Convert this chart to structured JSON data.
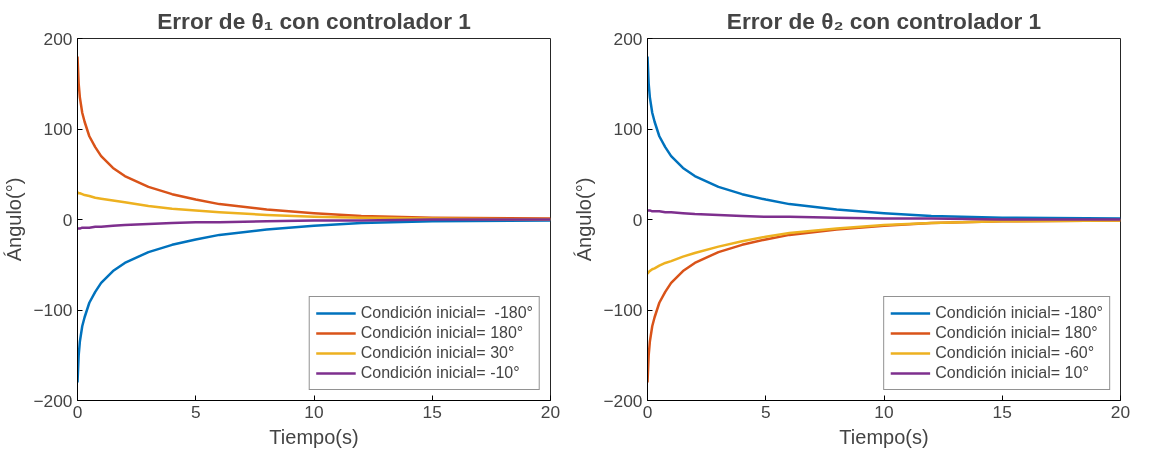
{
  "chart_data": [
    {
      "type": "line",
      "title": "Error de θ₁ con controlador 1",
      "xlabel": "Tiempo(s)",
      "ylabel": "Ángulo(°)",
      "x": [
        0,
        0.05,
        0.1,
        0.2,
        0.3,
        0.5,
        0.75,
        1,
        1.5,
        2,
        3,
        4,
        5,
        6,
        8,
        10,
        12,
        15,
        20
      ],
      "xlim": [
        0,
        20
      ],
      "ylim": [
        -200,
        200
      ],
      "xticks": [
        0,
        5,
        10,
        15,
        20
      ],
      "yticks": [
        -200,
        -100,
        0,
        100,
        200
      ],
      "grid": false,
      "legend": "bottom right",
      "line_style": "solid",
      "marker": "none",
      "series": [
        {
          "name": "Condición inicial=  -180°",
          "color": "#0072bd",
          "values": [
            -180,
            -150,
            -135,
            -118,
            -108,
            -92,
            -80,
            -70,
            -57,
            -48,
            -36,
            -28,
            -22,
            -17,
            -11,
            -7,
            -4,
            -2,
            -1
          ]
        },
        {
          "name": "Condición inicial= 180°",
          "color": "#d95319",
          "values": [
            180,
            150,
            135,
            118,
            108,
            92,
            80,
            70,
            57,
            48,
            36,
            28,
            22,
            17,
            11,
            7,
            4,
            2,
            1
          ]
        },
        {
          "name": "Condición inicial= 30°",
          "color": "#edb120",
          "values": [
            30,
            29,
            29,
            28,
            27,
            26,
            24,
            23,
            21,
            19,
            15,
            12,
            10,
            8,
            5,
            3,
            2,
            1,
            0
          ]
        },
        {
          "name": "Condición inicial= -10°",
          "color": "#7e2f8e",
          "values": [
            -10,
            -10,
            -10,
            -9,
            -9,
            -9,
            -8,
            -8,
            -7,
            -6,
            -5,
            -4,
            -3,
            -3,
            -2,
            -1,
            -1,
            0,
            0
          ]
        }
      ]
    },
    {
      "type": "line",
      "title": "Error de θ₂ con controlador 1",
      "xlabel": "Tiempo(s)",
      "ylabel": "Ángulo(°)",
      "x": [
        0,
        0.05,
        0.1,
        0.2,
        0.3,
        0.5,
        0.75,
        1,
        1.5,
        2,
        3,
        4,
        5,
        6,
        8,
        10,
        12,
        15,
        20
      ],
      "xlim": [
        0,
        20
      ],
      "ylim": [
        -200,
        200
      ],
      "xticks": [
        0,
        5,
        10,
        15,
        20
      ],
      "yticks": [
        -200,
        -100,
        0,
        100,
        200
      ],
      "grid": false,
      "legend": "bottom right",
      "line_style": "solid",
      "marker": "none",
      "series": [
        {
          "name": "Condición inicial= -180°",
          "color": "#0072bd",
          "values": [
            180,
            150,
            135,
            118,
            108,
            92,
            80,
            70,
            57,
            48,
            36,
            28,
            22,
            17,
            11,
            7,
            4,
            2,
            1
          ]
        },
        {
          "name": "Condición inicial= 180°",
          "color": "#d95319",
          "values": [
            -180,
            -150,
            -135,
            -118,
            -108,
            -92,
            -80,
            -70,
            -57,
            -48,
            -36,
            -28,
            -22,
            -17,
            -11,
            -7,
            -4,
            -2,
            -1
          ]
        },
        {
          "name": "Condición inicial= -60°",
          "color": "#edb120",
          "values": [
            -60,
            -58,
            -57,
            -55,
            -54,
            -51,
            -48,
            -46,
            -41,
            -37,
            -30,
            -24,
            -19,
            -15,
            -10,
            -6,
            -4,
            -2,
            -1
          ]
        },
        {
          "name": "Condición inicial= 10°",
          "color": "#7e2f8e",
          "values": [
            10,
            10,
            10,
            9,
            9,
            9,
            8,
            8,
            7,
            6,
            5,
            4,
            3,
            3,
            2,
            1,
            1,
            0,
            0
          ]
        }
      ]
    }
  ]
}
